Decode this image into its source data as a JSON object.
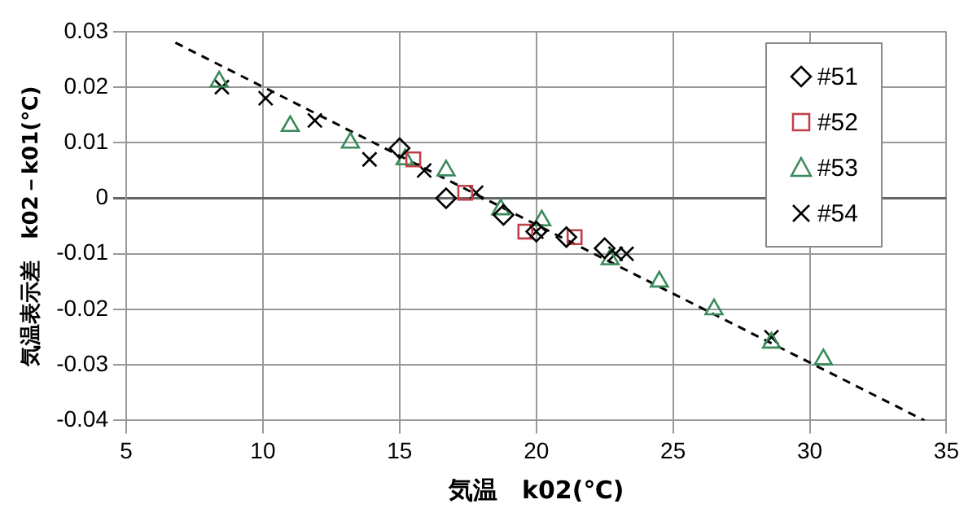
{
  "chart_data": {
    "type": "scatter",
    "xlabel": "気温　k02(℃)",
    "ylabel": "気温表示差　k02－k01(℃)",
    "xlim": [
      5,
      35
    ],
    "xticks": [
      5,
      10,
      15,
      20,
      25,
      30,
      35
    ],
    "ylim": [
      -0.04,
      0.03
    ],
    "yticks": [
      -0.04,
      -0.03,
      -0.02,
      -0.01,
      0,
      0.01,
      0.02,
      0.03
    ],
    "grid": true,
    "legend": "top right",
    "series": [
      {
        "name": "#51",
        "color": "#000000",
        "marker": "diamond",
        "x": [
          15.0,
          16.7,
          18.8,
          20.0,
          21.1,
          22.5
        ],
        "values": [
          0.009,
          0.0,
          -0.003,
          -0.006,
          -0.007,
          -0.009
        ]
      },
      {
        "name": "#52",
        "color": "#c0404a",
        "marker": "square",
        "x": [
          15.5,
          17.4,
          19.6,
          21.4
        ],
        "values": [
          0.007,
          0.001,
          -0.006,
          -0.007
        ]
      },
      {
        "name": "#53",
        "color": "#3a8a5a",
        "marker": "triangle",
        "x": [
          8.4,
          11.0,
          13.2,
          15.2,
          16.7,
          18.7,
          20.2,
          22.7,
          24.5,
          26.5,
          28.6,
          30.5
        ],
        "values": [
          0.021,
          0.013,
          0.01,
          0.007,
          0.005,
          -0.002,
          -0.004,
          -0.011,
          -0.015,
          -0.02,
          -0.026,
          -0.029
        ]
      },
      {
        "name": "#54",
        "color": "#000000",
        "marker": "cross",
        "x": [
          8.5,
          10.1,
          11.9,
          13.9,
          15.9,
          17.8,
          18.6,
          20.0,
          22.9,
          23.3,
          28.6
        ],
        "values": [
          0.02,
          0.018,
          0.014,
          0.007,
          0.005,
          0.001,
          null,
          -0.006,
          -0.01,
          -0.01,
          -0.025
        ]
      },
      {
        "type": "line",
        "color": "#000000",
        "line_style": "dashed",
        "marker": "none",
        "x": [
          6.8,
          34.2
        ],
        "values": [
          0.028,
          -0.04
        ]
      }
    ]
  }
}
